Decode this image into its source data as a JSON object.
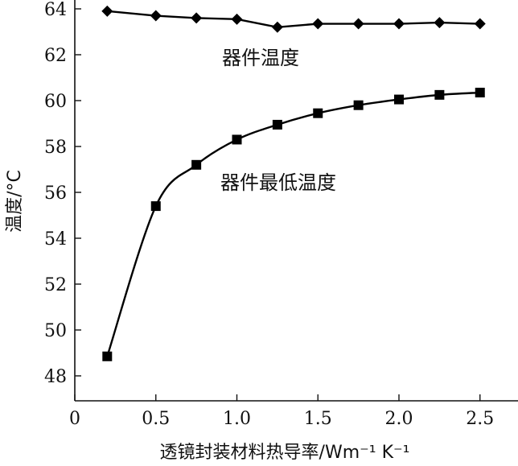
{
  "chart_data": {
    "type": "line",
    "xlabel": "透镜封装材料热导率/Wm⁻¹ K⁻¹",
    "ylabel": "温度/°C",
    "xlim": [
      0,
      2.75
    ],
    "ylim": [
      47,
      64
    ],
    "xticks": [
      0,
      0.5,
      1.0,
      1.5,
      2.0,
      2.5
    ],
    "xtick_labels": [
      "0",
      "0.5",
      "1.0",
      "1.5",
      "2.0",
      "2.5"
    ],
    "yticks": [
      48,
      50,
      52,
      54,
      56,
      58,
      60,
      62,
      64
    ],
    "ytick_labels": [
      "48",
      "50",
      "52",
      "54",
      "56",
      "58",
      "60",
      "62",
      "64"
    ],
    "grid": false,
    "series": [
      {
        "name": "器件温度",
        "marker": "diamond",
        "color": "#000000",
        "x": [
          0.2,
          0.5,
          0.75,
          1.0,
          1.25,
          1.5,
          1.75,
          2.0,
          2.25,
          2.5
        ],
        "values": [
          63.9,
          63.7,
          63.6,
          63.55,
          63.2,
          63.35,
          63.35,
          63.35,
          63.4,
          63.35
        ]
      },
      {
        "name": "器件最低温度",
        "marker": "square",
        "color": "#000000",
        "x": [
          0.2,
          0.5,
          0.75,
          1.0,
          1.25,
          1.5,
          1.75,
          2.0,
          2.25,
          2.5
        ],
        "values": [
          48.85,
          55.4,
          57.2,
          58.3,
          58.95,
          59.45,
          59.8,
          60.05,
          60.25,
          60.35
        ]
      }
    ],
    "annotations": [
      {
        "text": "器件温度",
        "series": 0
      },
      {
        "text": "器件最低温度",
        "series": 1
      }
    ]
  }
}
